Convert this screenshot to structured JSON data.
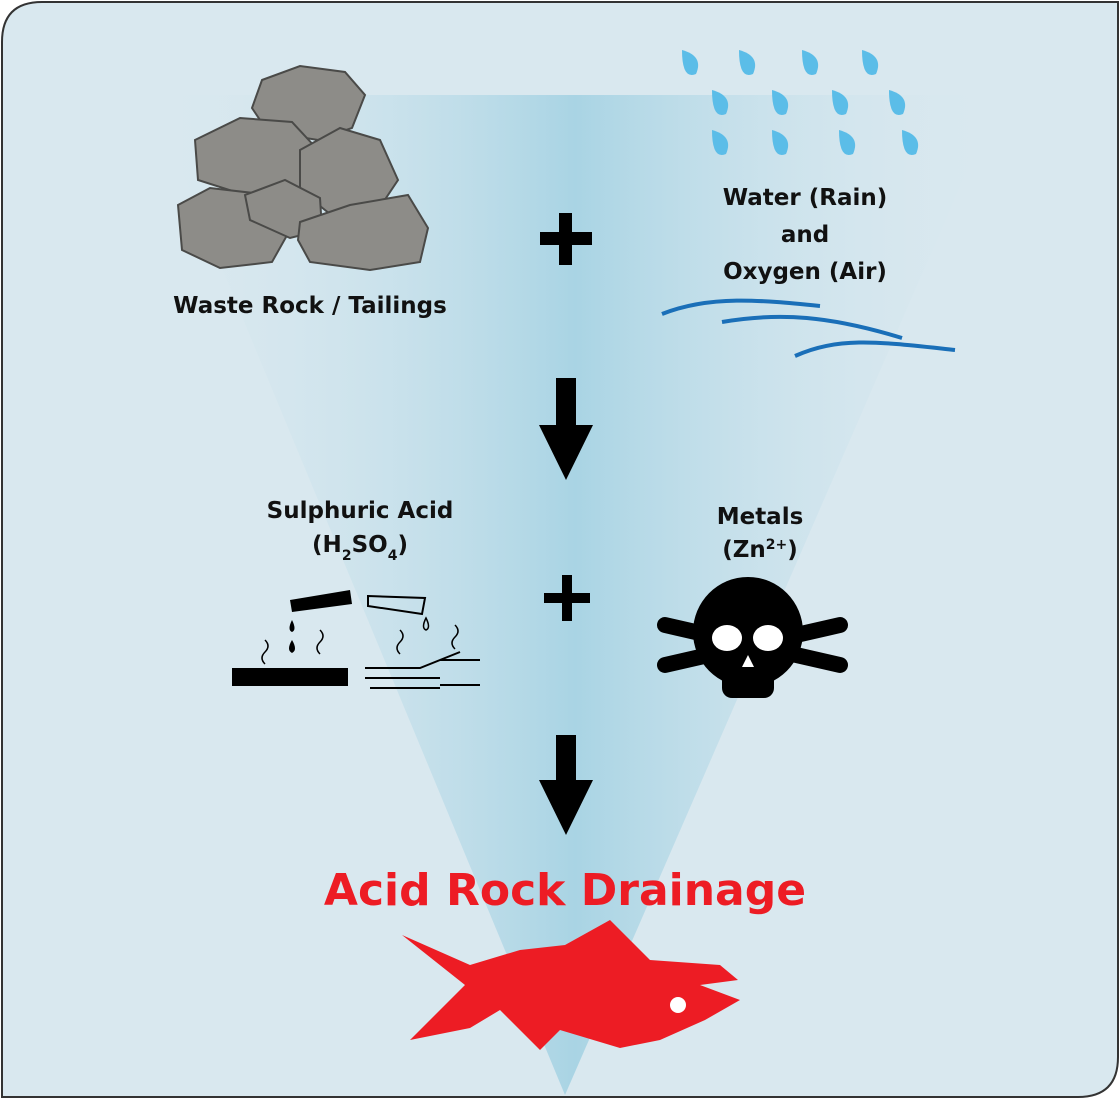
{
  "inputs": {
    "rock": {
      "label": "Waste Rock / Tailings"
    },
    "water": {
      "lines": [
        "Water (Rain)",
        "and",
        "Oxygen (Air)"
      ]
    }
  },
  "products": {
    "acid": {
      "label": "Sulphuric Acid",
      "formula_parts": [
        "(H",
        "2",
        "SO",
        "4",
        ")"
      ]
    },
    "metals": {
      "label": "Metals",
      "formula_parts": [
        "(Zn",
        "2+",
        ")"
      ]
    }
  },
  "result": {
    "label": "Acid Rock Drainage"
  }
}
